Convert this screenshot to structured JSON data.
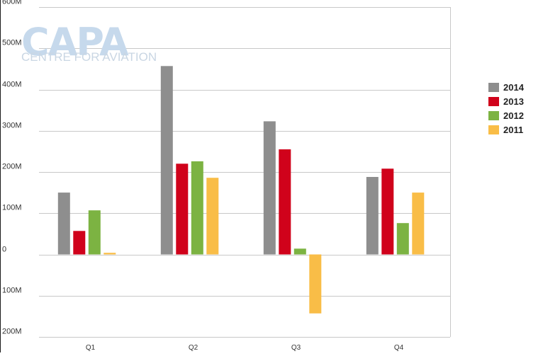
{
  "watermark": {
    "name": "CAPA",
    "tagline": "CENTRE FOR AVIATION"
  },
  "chart_data": {
    "type": "bar",
    "title": "",
    "xlabel": "",
    "ylabel": "",
    "categories": [
      "Q1",
      "Q2",
      "Q3",
      "Q4"
    ],
    "series": [
      {
        "name": "2014",
        "color": "#8e8e8e",
        "values": [
          150,
          457,
          323,
          188
        ]
      },
      {
        "name": "2013",
        "color": "#d0021b",
        "values": [
          57,
          220,
          255,
          208
        ]
      },
      {
        "name": "2012",
        "color": "#7cb342",
        "values": [
          107,
          226,
          14,
          76
        ]
      },
      {
        "name": "2011",
        "color": "#f9bd47",
        "values": [
          4,
          186,
          -143,
          150
        ]
      }
    ],
    "ylim": [
      -200,
      600
    ],
    "yticks": [
      {
        "value": 600,
        "label": "600M"
      },
      {
        "value": 500,
        "label": "500M"
      },
      {
        "value": 400,
        "label": "400M"
      },
      {
        "value": 300,
        "label": "300M"
      },
      {
        "value": 200,
        "label": "200M"
      },
      {
        "value": 100,
        "label": "100M"
      },
      {
        "value": 0,
        "label": "0"
      },
      {
        "value": -100,
        "label": "100M"
      },
      {
        "value": -200,
        "label": "200M"
      }
    ],
    "grid": true,
    "legend_position": "right"
  }
}
